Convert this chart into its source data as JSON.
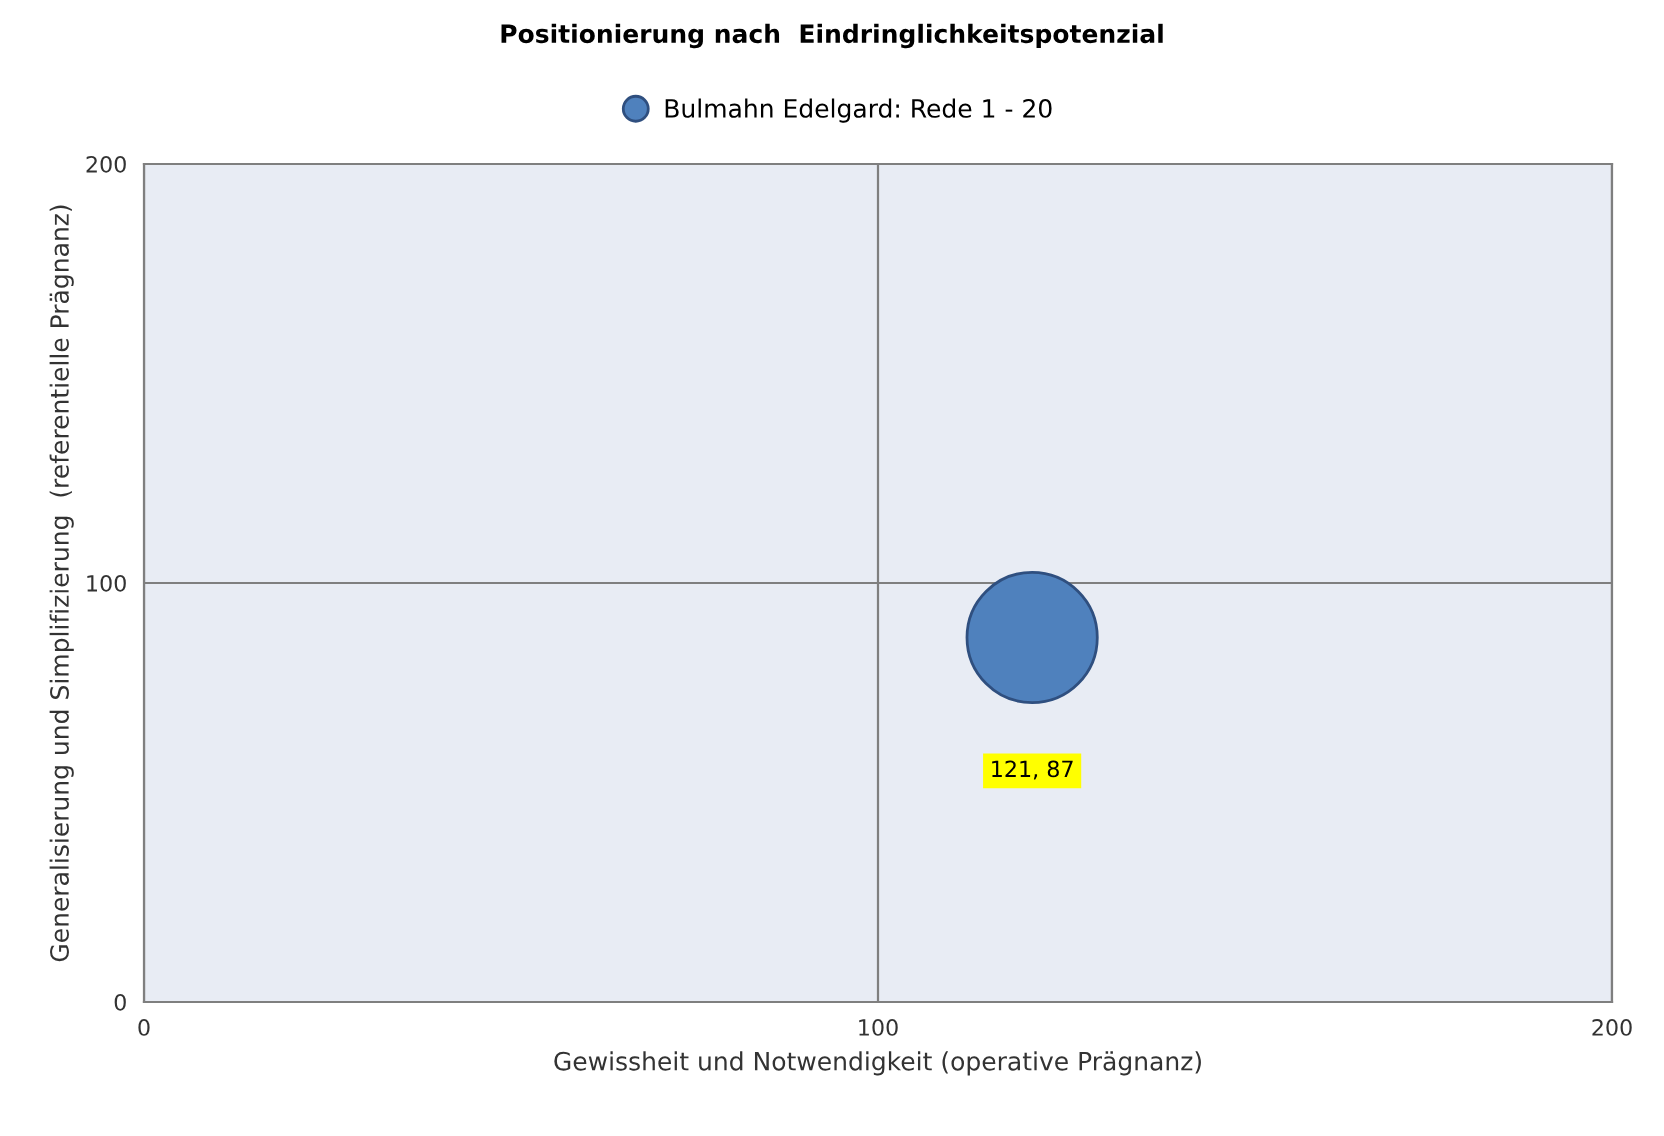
{
  "chart_data": {
    "type": "bubble",
    "title": "Positionierung nach  Eindringlichkeitspotenzial",
    "xlabel": "Gewissheit und Notwendigkeit (operative Prägnanz)",
    "ylabel": "Generalisierung und Simplifizierung  (referentielle Prägnanz)",
    "series": [
      {
        "name": "Bulmahn Edelgard: Rede 1 - 20",
        "color": "#4f81bd",
        "x": [
          121
        ],
        "values": [
          87
        ],
        "sizes": [
          1
        ],
        "value_labels": [
          "121, 87"
        ]
      }
    ],
    "xlim": [
      0,
      200
    ],
    "ylim": [
      0,
      200
    ],
    "xticks": [
      0,
      100,
      200
    ],
    "yticks": [
      0,
      100,
      200
    ],
    "grid": true,
    "legend": "top",
    "marker": "circle"
  }
}
